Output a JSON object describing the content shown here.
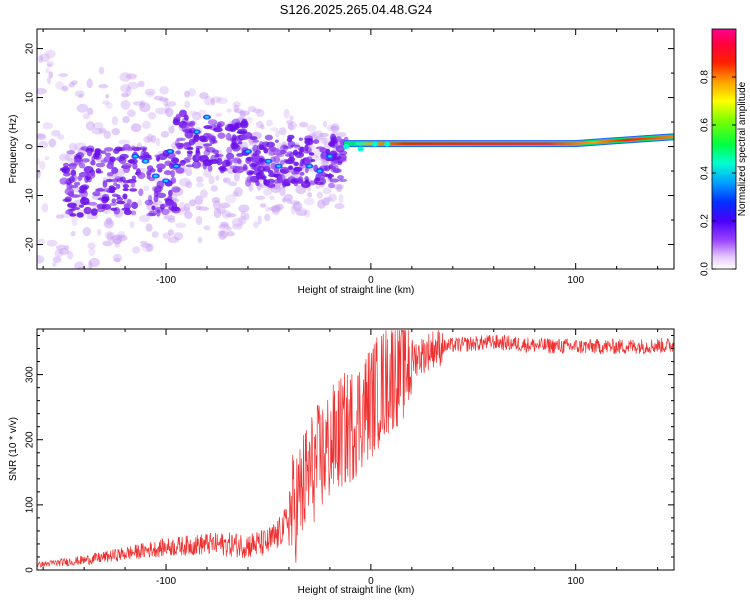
{
  "figure_title": "S126.2025.265.04.48.G24",
  "chart_data": [
    {
      "type": "heatmap",
      "title": "",
      "xlabel": "Height of straight line (km)",
      "ylabel": "Frequency (Hz)",
      "xlim": [
        -163,
        148
      ],
      "ylim": [
        -25,
        24
      ],
      "xticks": [
        -100,
        0,
        100
      ],
      "xtick_labels": [
        "-100",
        "0",
        "100"
      ],
      "yticks": [
        -20,
        -10,
        0,
        10,
        20
      ],
      "ytick_labels": [
        "-20",
        "-10",
        "0",
        "10",
        "20"
      ],
      "colorbar": {
        "label": "Normalized spectral amplitude",
        "range": [
          0,
          1
        ],
        "ticks": [
          0.0,
          0.2,
          0.4,
          0.6,
          0.8
        ],
        "tick_labels": [
          "0.0",
          "0.2",
          "0.4",
          "0.6",
          "0.8"
        ]
      },
      "description_points": {
        "strong_line": {
          "x_start": -12,
          "x_end": 148,
          "frequency_start": 0,
          "frequency_end": 1.8,
          "amplitude": 0.9
        },
        "scatter_region": {
          "x_start": -163,
          "x_end": -12,
          "frequency_range": [
            -25,
            24
          ],
          "amplitude_range": [
            0.05,
            0.3
          ]
        }
      }
    },
    {
      "type": "line",
      "title": "",
      "xlabel": "Height of straight line (km)",
      "ylabel": "SNR (10 * v/v)",
      "xlim": [
        -163,
        148
      ],
      "ylim": [
        0,
        370
      ],
      "xticks": [
        -100,
        0,
        100
      ],
      "xtick_labels": [
        "-100",
        "0",
        "100"
      ],
      "yticks": [
        0,
        100,
        200,
        300
      ],
      "ytick_labels": [
        "0",
        "100",
        "200",
        "300"
      ],
      "color": "#f03030",
      "series": [
        {
          "name": "SNR",
          "x": [
            -163,
            -140,
            -120,
            -100,
            -80,
            -60,
            -50,
            -45,
            -40,
            -35,
            -30,
            -25,
            -20,
            -15,
            -10,
            -5,
            0,
            5,
            10,
            15,
            20,
            25,
            30,
            40,
            60,
            80,
            100,
            120,
            148
          ],
          "values": [
            8,
            15,
            25,
            35,
            40,
            38,
            42,
            55,
            80,
            110,
            150,
            170,
            190,
            210,
            220,
            240,
            260,
            280,
            300,
            315,
            325,
            330,
            340,
            345,
            350,
            345,
            343,
            343,
            345
          ]
        }
      ]
    }
  ]
}
